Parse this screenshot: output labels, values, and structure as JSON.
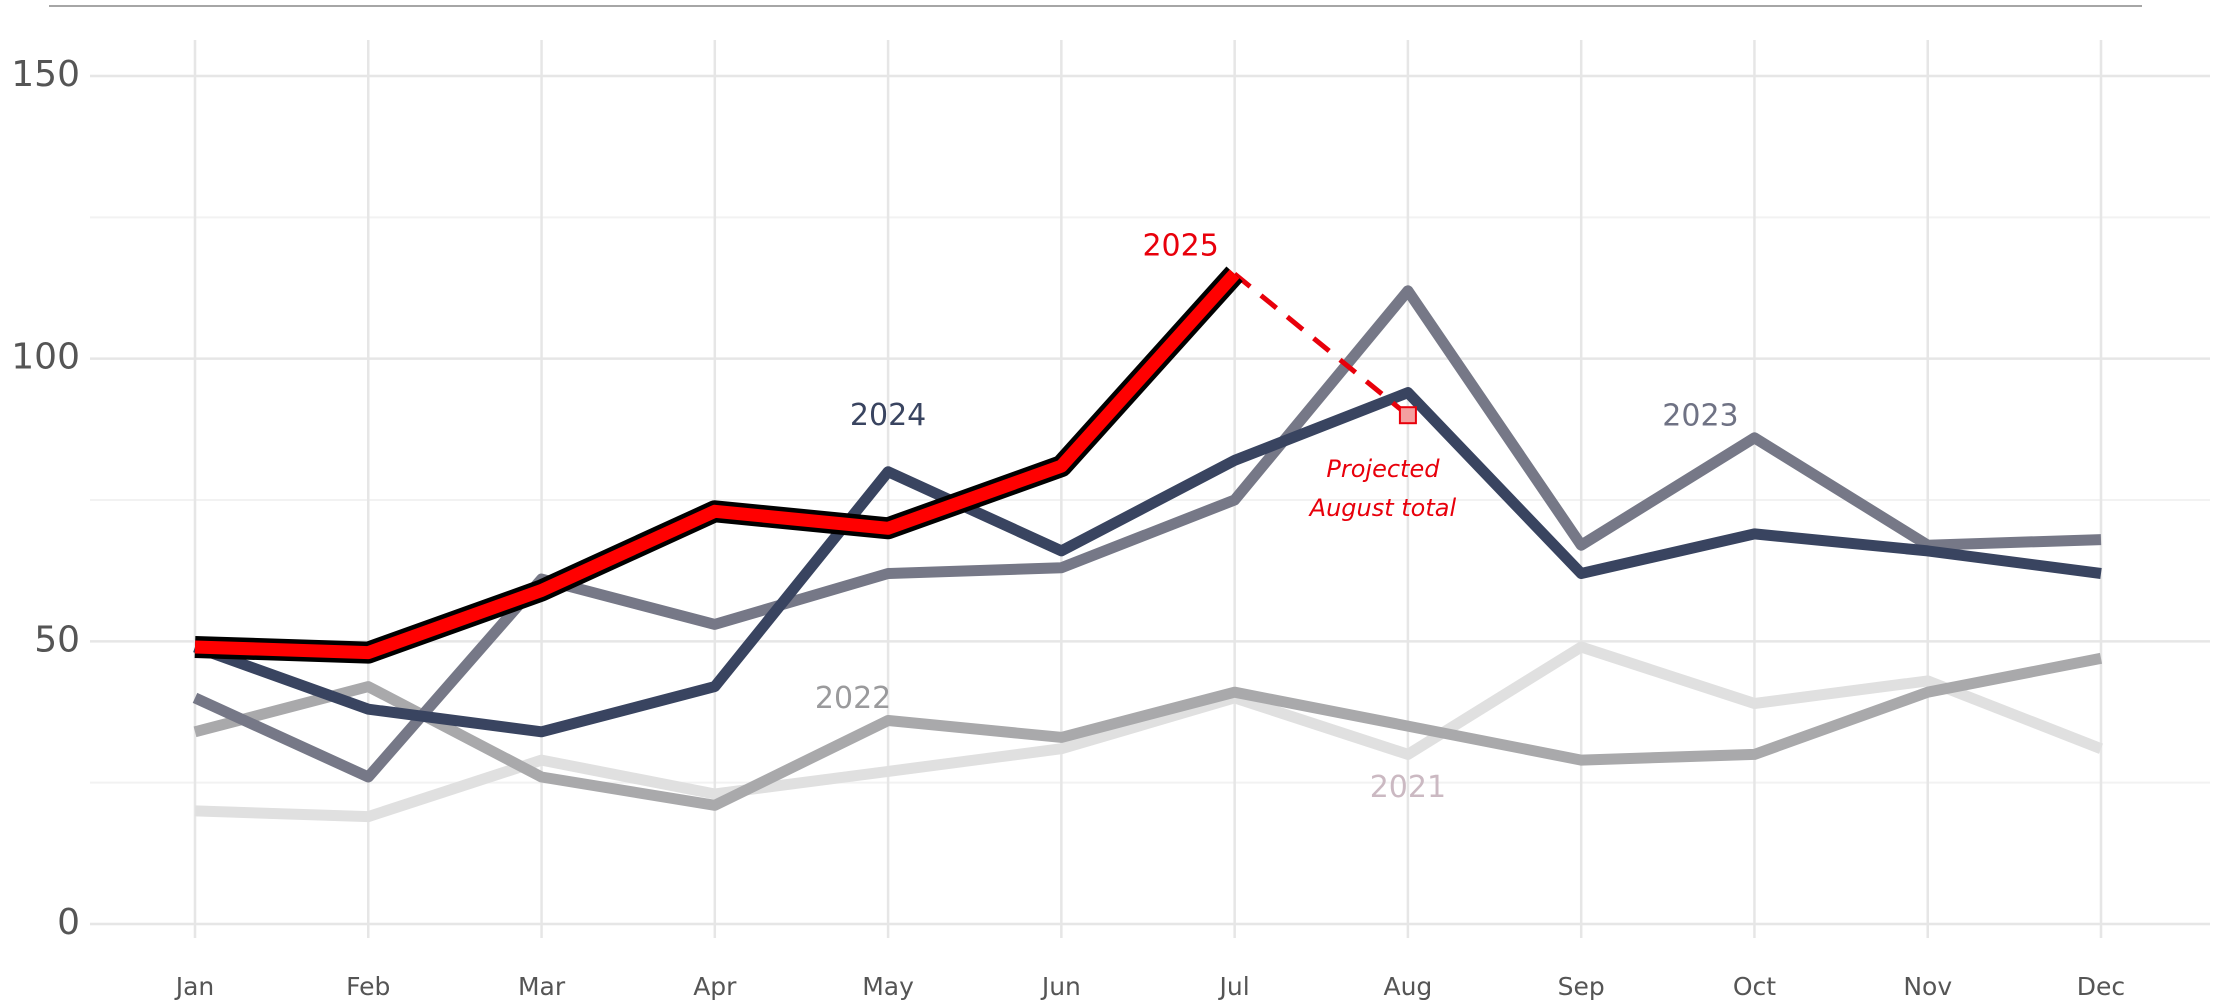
{
  "chart_data": {
    "type": "line",
    "categories": [
      "Jan",
      "Feb",
      "Mar",
      "Apr",
      "May",
      "Jun",
      "Jul",
      "Aug",
      "Sep",
      "Oct",
      "Nov",
      "Dec"
    ],
    "ylim": [
      0,
      150
    ],
    "yticks": [
      0,
      50,
      100,
      150
    ],
    "minor_yticks": [
      25,
      75,
      125
    ],
    "grid": true,
    "series": [
      {
        "name": "2021",
        "color": "#e0e0e0",
        "label_color": "#cbb9c2",
        "values": [
          20,
          19,
          29,
          23,
          27,
          31,
          40,
          30,
          49,
          39,
          43,
          31
        ]
      },
      {
        "name": "2022",
        "color": "#a9a9ab",
        "label_color": "#9a9a9c",
        "values": [
          34,
          42,
          26,
          21,
          36,
          33,
          41,
          35,
          29,
          30,
          41,
          47
        ]
      },
      {
        "name": "2023",
        "color": "#767887",
        "label_color": "#6f7284",
        "values": [
          40,
          26,
          61,
          53,
          62,
          63,
          75,
          112,
          67,
          86,
          67,
          68
        ]
      },
      {
        "name": "2024",
        "color": "#394460",
        "label_color": "#394460",
        "values": [
          49,
          38,
          34,
          42,
          80,
          66,
          82,
          94,
          62,
          69,
          66,
          62
        ]
      },
      {
        "name": "2025",
        "color": "#ff0000",
        "outline": "#000000",
        "label_color": "#e8000b",
        "values": [
          49,
          48,
          59,
          73,
          70,
          81,
          115,
          null,
          null,
          null,
          null,
          null
        ]
      }
    ],
    "projection": {
      "color": "#e8000b",
      "marker_color": "#f4a0a0",
      "values": [
        null,
        null,
        null,
        null,
        null,
        null,
        115,
        90,
        null,
        null,
        null,
        null
      ]
    },
    "annotation": {
      "lines": [
        "Projected",
        "August total"
      ],
      "color": "#e8000b"
    }
  }
}
